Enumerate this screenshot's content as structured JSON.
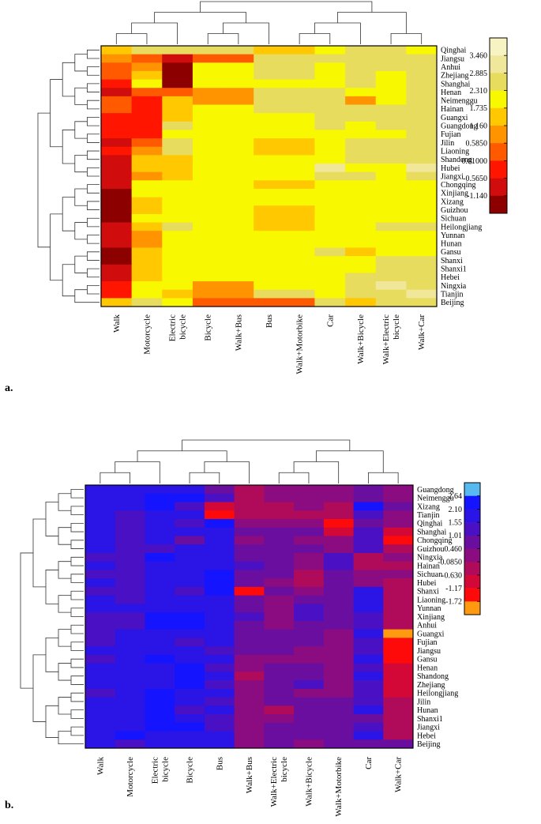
{
  "figure": {
    "panel_a_label": "a.",
    "panel_b_label": "b."
  },
  "chart_data": [
    {
      "type": "heatmap",
      "panel": "a",
      "title": "",
      "columns": [
        "Walk",
        "Motorcycle",
        "Electric bicycle",
        "Bicycle",
        "Walk+Bus",
        "Bus",
        "Walk+Motorbike",
        "Car",
        "Walk+Bicycle",
        "Walk+Electric bicycle",
        "Walk+Car"
      ],
      "rows": [
        "Qinghai",
        "Jiangsu",
        "Anhui",
        "Zhejiang",
        "Shanghai",
        "Henan",
        "Neimenggu",
        "Hainan",
        "Guangxi",
        "Guangdong",
        "Fujian",
        "Jilin",
        "Liaoning",
        "Shandong",
        "Hubei",
        "Jiangxi",
        "Chongqing",
        "Xinjiang",
        "Xizang",
        "Guizhou",
        "Sichuan",
        "Heilongjiang",
        "Yunnan",
        "Hunan",
        "Gansu",
        "Shanxi",
        "Shanxi1",
        "Hebei",
        "Ningxia",
        "Tianjin",
        "Beijing"
      ],
      "legend": {
        "labels": [
          "3.460",
          "2.885",
          "2.310",
          "1.735",
          "1.160",
          "0.5850",
          "0.01000",
          "-0.5650",
          "-1.140"
        ],
        "colors": [
          "#f8f3c2",
          "#f0e79a",
          "#e8dc5e",
          "#f8f800",
          "#ffc800",
          "#ff9400",
          "#ff5a00",
          "#ff1500",
          "#d10c0c",
          "#8c0000"
        ]
      },
      "values": [
        [
          4,
          2,
          2,
          2,
          2,
          4,
          4,
          3,
          2,
          2,
          3
        ],
        [
          5,
          6,
          8,
          6,
          6,
          2,
          2,
          2,
          2,
          2,
          2
        ],
        [
          6,
          5,
          9,
          3,
          3,
          2,
          2,
          3,
          2,
          2,
          2
        ],
        [
          6,
          4,
          9,
          3,
          3,
          2,
          2,
          3,
          2,
          3,
          2
        ],
        [
          7,
          3,
          9,
          3,
          3,
          3,
          3,
          3,
          2,
          3,
          2
        ],
        [
          8,
          6,
          6,
          5,
          5,
          2,
          2,
          2,
          3,
          3,
          2
        ],
        [
          6,
          7,
          4,
          5,
          5,
          2,
          2,
          2,
          5,
          3,
          2
        ],
        [
          6,
          7,
          4,
          3,
          3,
          2,
          2,
          2,
          2,
          2,
          2
        ],
        [
          7,
          7,
          4,
          3,
          3,
          3,
          3,
          2,
          2,
          2,
          2
        ],
        [
          7,
          7,
          2,
          3,
          3,
          3,
          3,
          2,
          3,
          2,
          2
        ],
        [
          7,
          7,
          3,
          3,
          3,
          3,
          3,
          3,
          3,
          3,
          2
        ],
        [
          8,
          6,
          2,
          3,
          3,
          4,
          4,
          3,
          2,
          2,
          2
        ],
        [
          7,
          5,
          2,
          3,
          3,
          4,
          4,
          3,
          2,
          2,
          2
        ],
        [
          8,
          4,
          4,
          3,
          3,
          3,
          3,
          3,
          2,
          2,
          2
        ],
        [
          8,
          4,
          4,
          3,
          3,
          3,
          3,
          1,
          3,
          3,
          1
        ],
        [
          8,
          5,
          4,
          3,
          3,
          3,
          3,
          2,
          2,
          3,
          2
        ],
        [
          8,
          3,
          3,
          3,
          3,
          4,
          4,
          3,
          3,
          3,
          3
        ],
        [
          9,
          3,
          3,
          3,
          3,
          3,
          3,
          3,
          3,
          3,
          3
        ],
        [
          9,
          4,
          3,
          3,
          3,
          3,
          3,
          3,
          3,
          3,
          3
        ],
        [
          9,
          4,
          3,
          3,
          3,
          4,
          4,
          3,
          3,
          3,
          3
        ],
        [
          9,
          3,
          3,
          3,
          3,
          4,
          4,
          3,
          3,
          3,
          3
        ],
        [
          8,
          4,
          2,
          3,
          3,
          4,
          4,
          3,
          3,
          2,
          2
        ],
        [
          8,
          5,
          3,
          3,
          3,
          3,
          3,
          3,
          3,
          3,
          3
        ],
        [
          8,
          5,
          3,
          3,
          3,
          3,
          3,
          3,
          3,
          3,
          3
        ],
        [
          9,
          4,
          3,
          3,
          3,
          3,
          3,
          2,
          4,
          3,
          3
        ],
        [
          9,
          4,
          3,
          3,
          3,
          3,
          3,
          3,
          3,
          2,
          2
        ],
        [
          8,
          4,
          3,
          3,
          3,
          3,
          3,
          3,
          3,
          2,
          2
        ],
        [
          8,
          4,
          3,
          3,
          3,
          3,
          3,
          3,
          2,
          2,
          2
        ],
        [
          7,
          3,
          3,
          5,
          5,
          3,
          3,
          3,
          2,
          1,
          2
        ],
        [
          7,
          3,
          4,
          5,
          5,
          2,
          2,
          3,
          2,
          2,
          1
        ],
        [
          4,
          2,
          3,
          6,
          6,
          6,
          6,
          2,
          4,
          2,
          2
        ]
      ]
    },
    {
      "type": "heatmap",
      "panel": "b",
      "title": "",
      "columns": [
        "Walk",
        "Motorcycle",
        "Electric bicycle",
        "Bicycle",
        "Bus",
        "Walk+Bus",
        "Walk+Electric bicycle",
        "Walk+Bicycle",
        "Walk+Motorbike",
        "Car",
        "Walk+Car"
      ],
      "rows": [
        "Guangdong",
        "Neimenggu",
        "Xizang",
        "Tianjin",
        "Qinghai",
        "Shanghai",
        "Chongqing",
        "Guizhou",
        "Ningxia",
        "Hainan",
        "Sichuan",
        "Hubei",
        "Shanxi",
        "Liaoning",
        "Yunnan",
        "Xinjiang",
        "Anhui",
        "Guangxi",
        "Fujian",
        "Jiangsu",
        "Gansu",
        "Henan",
        "Shandong",
        "Zhejiang",
        "Heilongjiang",
        "Jilin",
        "Hunan",
        "Shanxi1",
        "Jiangxi",
        "Hebei",
        "Beijing"
      ],
      "legend": {
        "labels": [
          "2.64",
          "2.10",
          "1.55",
          "1.01",
          "0.460",
          "-0.0850",
          "-0.630",
          "-1.17",
          "-1.72"
        ],
        "colors": [
          "#58b8f0",
          "#1414ff",
          "#2a14e6",
          "#4a10c4",
          "#6a0ea0",
          "#8a0c80",
          "#b00a5a",
          "#d40836",
          "#ff0a0a",
          "#ff9a10"
        ]
      },
      "values": [
        [
          2,
          2,
          2,
          2,
          4,
          6,
          5,
          5,
          5,
          4,
          5
        ],
        [
          2,
          2,
          1,
          1,
          3,
          6,
          5,
          5,
          5,
          4,
          5
        ],
        [
          2,
          2,
          1,
          3,
          7,
          6,
          6,
          5,
          6,
          1,
          4
        ],
        [
          2,
          3,
          2,
          2,
          8,
          6,
          6,
          6,
          6,
          3,
          5
        ],
        [
          2,
          3,
          2,
          3,
          1,
          5,
          5,
          5,
          8,
          4,
          5
        ],
        [
          2,
          3,
          2,
          2,
          2,
          4,
          4,
          4,
          7,
          3,
          7
        ],
        [
          2,
          3,
          2,
          4,
          2,
          5,
          4,
          5,
          5,
          3,
          8
        ],
        [
          2,
          3,
          3,
          2,
          2,
          4,
          4,
          4,
          5,
          3,
          6
        ],
        [
          3,
          3,
          1,
          2,
          2,
          4,
          4,
          5,
          3,
          6,
          5
        ],
        [
          2,
          3,
          2,
          2,
          2,
          3,
          4,
          5,
          3,
          6,
          6
        ],
        [
          3,
          3,
          2,
          2,
          1,
          4,
          4,
          6,
          4,
          5,
          5
        ],
        [
          2,
          3,
          2,
          2,
          1,
          4,
          5,
          6,
          4,
          5,
          6
        ],
        [
          3,
          3,
          2,
          3,
          1,
          8,
          4,
          5,
          4,
          2,
          6
        ],
        [
          2,
          3,
          2,
          2,
          2,
          4,
          5,
          4,
          4,
          2,
          6
        ],
        [
          2,
          2,
          2,
          2,
          2,
          4,
          5,
          3,
          4,
          2,
          6
        ],
        [
          3,
          3,
          1,
          1,
          2,
          3,
          5,
          3,
          4,
          3,
          6
        ],
        [
          3,
          3,
          1,
          1,
          2,
          4,
          5,
          4,
          4,
          3,
          6
        ],
        [
          3,
          2,
          2,
          2,
          2,
          4,
          4,
          4,
          5,
          2,
          9
        ],
        [
          3,
          2,
          2,
          3,
          2,
          4,
          4,
          4,
          5,
          3,
          8
        ],
        [
          2,
          2,
          2,
          2,
          3,
          4,
          4,
          5,
          5,
          3,
          8
        ],
        [
          3,
          2,
          1,
          2,
          2,
          5,
          5,
          5,
          5,
          2,
          8
        ],
        [
          2,
          2,
          2,
          1,
          3,
          5,
          4,
          4,
          5,
          3,
          7
        ],
        [
          2,
          2,
          2,
          1,
          2,
          6,
          4,
          4,
          5,
          2,
          7
        ],
        [
          2,
          2,
          2,
          1,
          3,
          5,
          4,
          3,
          5,
          3,
          7
        ],
        [
          3,
          2,
          1,
          2,
          2,
          5,
          4,
          5,
          5,
          3,
          7
        ],
        [
          2,
          2,
          1,
          2,
          3,
          5,
          4,
          4,
          4,
          3,
          6
        ],
        [
          2,
          2,
          1,
          3,
          2,
          5,
          6,
          4,
          4,
          2,
          6
        ],
        [
          2,
          2,
          1,
          2,
          3,
          5,
          5,
          4,
          4,
          4,
          6
        ],
        [
          2,
          2,
          1,
          1,
          3,
          5,
          4,
          4,
          4,
          3,
          6
        ],
        [
          2,
          1,
          2,
          2,
          2,
          5,
          4,
          4,
          4,
          2,
          6
        ],
        [
          2,
          3,
          2,
          2,
          2,
          5,
          4,
          5,
          4,
          4,
          4
        ]
      ]
    }
  ]
}
